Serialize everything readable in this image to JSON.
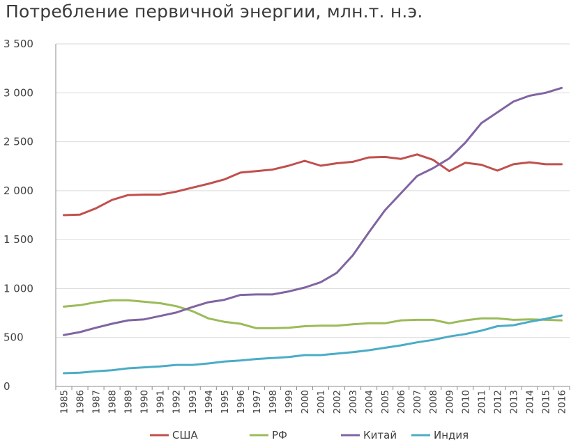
{
  "chart_data": {
    "type": "line",
    "title": "Потребление первичной энергии, млн.т. н.э.",
    "xlabel": "",
    "ylabel": "",
    "ylim": [
      0,
      3500
    ],
    "yticks": [
      0,
      500,
      1000,
      1500,
      2000,
      2500,
      3000,
      3500
    ],
    "ytick_labels": [
      "0",
      "500",
      "1 000",
      "1 500",
      "2 000",
      "2 500",
      "3 000",
      "3 500"
    ],
    "grid": "horizontal",
    "legend_position": "bottom",
    "categories": [
      "1985",
      "1986",
      "1987",
      "1988",
      "1989",
      "1990",
      "1991",
      "1992",
      "1993",
      "1994",
      "1995",
      "1996",
      "1997",
      "1998",
      "1999",
      "2000",
      "2001",
      "2002",
      "2003",
      "2004",
      "2005",
      "2006",
      "2007",
      "2008",
      "2009",
      "2010",
      "2011",
      "2012",
      "2013",
      "2014",
      "2015",
      "2016"
    ],
    "series": [
      {
        "name": "США",
        "color": "#c0504d",
        "values": [
          1750,
          1755,
          1820,
          1905,
          1955,
          1960,
          1960,
          1990,
          2030,
          2070,
          2115,
          2185,
          2200,
          2215,
          2255,
          2305,
          2255,
          2280,
          2295,
          2340,
          2345,
          2325,
          2370,
          2315,
          2200,
          2285,
          2265,
          2205,
          2270,
          2290,
          2270,
          2270
        ]
      },
      {
        "name": "РФ",
        "color": "#9bbb59",
        "values": [
          815,
          830,
          860,
          880,
          880,
          865,
          850,
          820,
          770,
          695,
          660,
          640,
          595,
          595,
          600,
          615,
          620,
          620,
          635,
          645,
          645,
          675,
          680,
          680,
          645,
          675,
          695,
          695,
          680,
          685,
          680,
          675
        ]
      },
      {
        "name": "Китай",
        "color": "#8064a2",
        "values": [
          525,
          555,
          600,
          640,
          675,
          685,
          720,
          755,
          810,
          860,
          885,
          935,
          940,
          940,
          970,
          1010,
          1065,
          1160,
          1340,
          1575,
          1800,
          1975,
          2150,
          2230,
          2330,
          2490,
          2690,
          2800,
          2910,
          2970,
          3000,
          3050
        ]
      },
      {
        "name": "Индия",
        "color": "#4bacc6",
        "values": [
          135,
          140,
          155,
          165,
          185,
          195,
          205,
          220,
          220,
          235,
          255,
          265,
          280,
          290,
          300,
          320,
          320,
          335,
          350,
          370,
          395,
          420,
          450,
          475,
          510,
          535,
          570,
          615,
          625,
          660,
          690,
          725
        ]
      }
    ]
  }
}
